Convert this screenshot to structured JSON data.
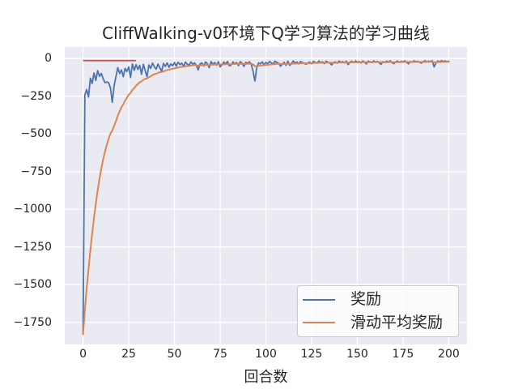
{
  "title": "CliffWalking-v0环境下Q学习算法的学习曲线",
  "xlabel": "回合数",
  "legend": {
    "items": [
      {
        "label": "奖励",
        "color": "#4C72B0"
      },
      {
        "label": "滑动平均奖励",
        "color": "#DD8452"
      }
    ]
  },
  "colors": {
    "axes_background": "#EAEAF2",
    "grid": "#FFFFFF",
    "text": "#262626",
    "reward_line": "#4C72B0",
    "moving_average_line": "#DD8452",
    "reference_line": "#C44E52"
  },
  "chart_data": {
    "type": "line",
    "title": "CliffWalking-v0环境下Q学习算法的学习曲线",
    "xlabel": "回合数",
    "ylabel": "",
    "xlim": [
      -10,
      210
    ],
    "ylim": [
      -1897,
      77
    ],
    "x_ticks": [
      0,
      25,
      50,
      75,
      100,
      125,
      150,
      175,
      200
    ],
    "y_ticks": [
      0,
      -250,
      -500,
      -750,
      -1000,
      -1250,
      -1500,
      -1750
    ],
    "grid": true,
    "legend_position": "lower right",
    "x_start": 0,
    "x_step": 1,
    "series": [
      {
        "name": "奖励",
        "color": "#4C72B0",
        "values": [
          -1830,
          -240,
          -205,
          -255,
          -130,
          -165,
          -95,
          -145,
          -80,
          -118,
          -98,
          -133,
          -160,
          -155,
          -160,
          -195,
          -290,
          -180,
          -120,
          -60,
          -100,
          -75,
          -120,
          -65,
          -85,
          -55,
          -125,
          -35,
          -78,
          -40,
          -72,
          -45,
          -105,
          -38,
          -80,
          -120,
          -42,
          -65,
          -30,
          -55,
          -70,
          -36,
          -60,
          -85,
          -32,
          -52,
          -28,
          -58,
          -35,
          -48,
          -26,
          -50,
          -24,
          -40,
          -30,
          -52,
          -23,
          -36,
          -45,
          -22,
          -38,
          -28,
          -46,
          -75,
          -35,
          -29,
          -49,
          -22,
          -33,
          -60,
          -20,
          -37,
          -26,
          -44,
          -21,
          -55,
          -40,
          -23,
          -36,
          -19,
          -48,
          -43,
          -22,
          -35,
          -26,
          -47,
          -20,
          -31,
          -52,
          -24,
          -33,
          -21,
          -38,
          -85,
          -149,
          -60,
          -28,
          -35,
          -22,
          -41,
          -25,
          -33,
          -19,
          -28,
          -36,
          -17,
          -26,
          -31,
          -50,
          -38,
          -24,
          -45,
          -18,
          -45,
          -33,
          -16,
          -29,
          -22,
          -35,
          -19,
          -26,
          -31,
          -38,
          -28,
          -23,
          -34,
          -18,
          -25,
          -30,
          -16,
          -27,
          -21,
          -33,
          -17,
          -24,
          -29,
          -42,
          -26,
          -22,
          -31,
          -16,
          -25,
          -20,
          -28,
          -17,
          -40,
          -23,
          -18,
          -27,
          -15,
          -24,
          -19,
          -29,
          -16,
          -23,
          -35,
          -17,
          -22,
          -26,
          -15,
          -24,
          -18,
          -28,
          -38,
          -21,
          -25,
          -17,
          -23,
          -15,
          -26,
          -33,
          -22,
          -16,
          -25,
          -18,
          -21,
          -15,
          -24,
          -35,
          -20,
          -23,
          -15,
          -21,
          -17,
          -24,
          -30,
          -20,
          -14,
          -22,
          -17,
          -19,
          -15,
          -55,
          -28,
          -16,
          -21,
          -14,
          -19,
          -16,
          -20,
          -17
        ]
      },
      {
        "name": "滑动平均奖励",
        "color": "#DD8452",
        "derived": "exponential_moving_average_of_series_0",
        "alpha": 0.1,
        "sampled_x": [
          0,
          5,
          10,
          15,
          20,
          25,
          30,
          40,
          50,
          75,
          100,
          150,
          200
        ],
        "sampled_values": [
          -1830,
          -1160,
          -729,
          -497,
          -352,
          -240,
          -169,
          -100,
          -65,
          -40,
          -29,
          -22,
          -19
        ]
      }
    ],
    "reference_segment": {
      "y": -13,
      "x_start": 0,
      "x_end": 29,
      "color": "#C44E52"
    }
  }
}
